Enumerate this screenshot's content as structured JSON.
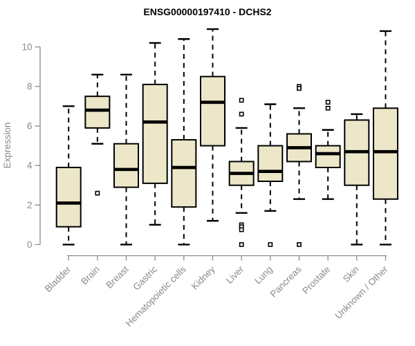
{
  "chart_data": {
    "type": "boxplot",
    "title": "ENSG00000197410 - DCHS2",
    "ylabel": "Expression",
    "xlabel": "",
    "y_ticks": [
      0,
      2,
      4,
      6,
      8,
      10
    ],
    "ylim": [
      0,
      10
    ],
    "grid": false,
    "legend": "none",
    "categories": [
      "Bladder",
      "Brain",
      "Breast",
      "Gastric",
      "Hematopoietic cells",
      "Kidney",
      "Liver",
      "Lung",
      "Pancreas",
      "Prostate",
      "Skin",
      "Unknown / Other"
    ],
    "series": [
      {
        "name": "Bladder",
        "whisker_low": 0.0,
        "q1": 0.9,
        "median": 2.1,
        "q3": 3.9,
        "whisker_high": 7.0,
        "outliers": []
      },
      {
        "name": "Brain",
        "whisker_low": 5.1,
        "q1": 5.9,
        "median": 6.8,
        "q3": 7.5,
        "whisker_high": 8.6,
        "outliers": [
          2.6
        ]
      },
      {
        "name": "Breast",
        "whisker_low": 0.0,
        "q1": 2.9,
        "median": 3.8,
        "q3": 5.1,
        "whisker_high": 8.6,
        "outliers": []
      },
      {
        "name": "Gastric",
        "whisker_low": 1.0,
        "q1": 3.1,
        "median": 6.2,
        "q3": 8.1,
        "whisker_high": 10.2,
        "outliers": []
      },
      {
        "name": "Hematopoietic cells",
        "whisker_low": 0.0,
        "q1": 1.9,
        "median": 3.9,
        "q3": 5.3,
        "whisker_high": 10.4,
        "outliers": []
      },
      {
        "name": "Kidney",
        "whisker_low": 1.2,
        "q1": 5.0,
        "median": 7.2,
        "q3": 8.5,
        "whisker_high": 10.9,
        "outliers": []
      },
      {
        "name": "Liver",
        "whisker_low": 1.6,
        "q1": 3.0,
        "median": 3.6,
        "q3": 4.2,
        "whisker_high": 5.9,
        "outliers": [
          7.3,
          6.6,
          1.0,
          0.9,
          0.75,
          0.0
        ]
      },
      {
        "name": "Lung",
        "whisker_low": 1.7,
        "q1": 3.2,
        "median": 3.7,
        "q3": 5.0,
        "whisker_high": 7.1,
        "outliers": [
          0.0
        ]
      },
      {
        "name": "Pancreas",
        "whisker_low": 2.3,
        "q1": 4.2,
        "median": 4.9,
        "q3": 5.6,
        "whisker_high": 6.9,
        "outliers": [
          8.0,
          7.9,
          0.0
        ]
      },
      {
        "name": "Prostate",
        "whisker_low": 2.3,
        "q1": 3.9,
        "median": 4.6,
        "q3": 5.0,
        "whisker_high": 5.8,
        "outliers": [
          7.2,
          6.9
        ]
      },
      {
        "name": "Skin",
        "whisker_low": 0.0,
        "q1": 3.0,
        "median": 4.7,
        "q3": 6.3,
        "whisker_high": 6.6,
        "outliers": []
      },
      {
        "name": "Unknown / Other",
        "whisker_low": 0.0,
        "q1": 2.3,
        "median": 4.7,
        "q3": 6.9,
        "whisker_high": 10.8,
        "outliers": []
      }
    ],
    "colors": {
      "box_fill": "#ECE7C8",
      "box_border": "#000000",
      "median": "#000000",
      "whisker": "#000000",
      "axis": "#8A8A8A",
      "axis_text": "#8A8A8A",
      "title_text": "#000000",
      "background": "#FFFFFF"
    }
  }
}
